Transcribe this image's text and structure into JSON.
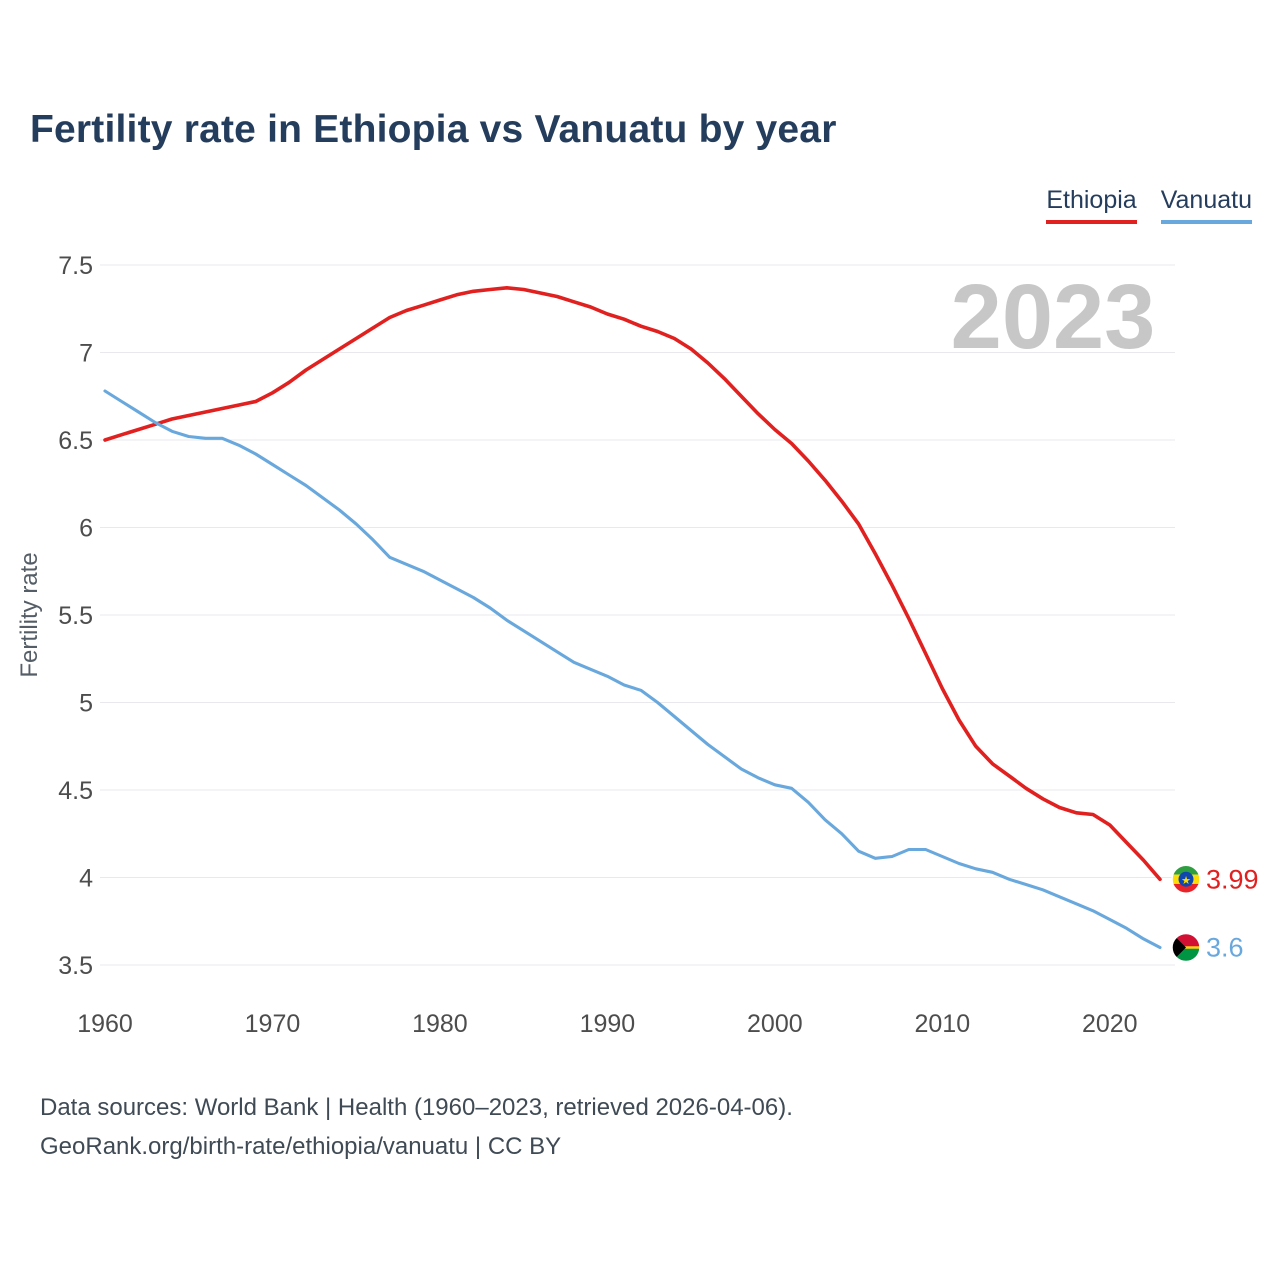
{
  "header": {
    "title": "Fertility rate in Ethiopia vs Vanuatu by year"
  },
  "legend": {
    "items": [
      {
        "label": "Ethiopia",
        "color": "#e12120"
      },
      {
        "label": "Vanuatu",
        "color": "#69a8dd"
      }
    ]
  },
  "chart_data": {
    "type": "line",
    "title": "Fertility rate in Ethiopia vs Vanuatu by year",
    "xlabel": "",
    "ylabel": "Fertility rate",
    "ylim": [
      3.5,
      7.5
    ],
    "xlim": [
      1960,
      2023
    ],
    "y_ticks": [
      3.5,
      4,
      4.5,
      5,
      5.5,
      6,
      6.5,
      7,
      7.5
    ],
    "x_ticks": [
      1960,
      1970,
      1980,
      1990,
      2000,
      2010,
      2020
    ],
    "grid": "horizontal",
    "legend_position": "top-right",
    "watermark": "2023",
    "x": [
      1960,
      1961,
      1962,
      1963,
      1964,
      1965,
      1966,
      1967,
      1968,
      1969,
      1970,
      1971,
      1972,
      1973,
      1974,
      1975,
      1976,
      1977,
      1978,
      1979,
      1980,
      1981,
      1982,
      1983,
      1984,
      1985,
      1986,
      1987,
      1988,
      1989,
      1990,
      1991,
      1992,
      1993,
      1994,
      1995,
      1996,
      1997,
      1998,
      1999,
      2000,
      2001,
      2002,
      2003,
      2004,
      2005,
      2006,
      2007,
      2008,
      2009,
      2010,
      2011,
      2012,
      2013,
      2014,
      2015,
      2016,
      2017,
      2018,
      2019,
      2020,
      2021,
      2022,
      2023
    ],
    "series": [
      {
        "name": "Ethiopia",
        "color": "#e12120",
        "flag": "ethiopia",
        "end_label": "3.99",
        "values": [
          6.5,
          6.53,
          6.56,
          6.59,
          6.62,
          6.64,
          6.66,
          6.68,
          6.7,
          6.72,
          6.77,
          6.83,
          6.9,
          6.96,
          7.02,
          7.08,
          7.14,
          7.2,
          7.24,
          7.27,
          7.3,
          7.33,
          7.35,
          7.36,
          7.37,
          7.36,
          7.34,
          7.32,
          7.29,
          7.26,
          7.22,
          7.19,
          7.15,
          7.12,
          7.08,
          7.02,
          6.94,
          6.85,
          6.75,
          6.65,
          6.56,
          6.48,
          6.38,
          6.27,
          6.15,
          6.02,
          5.85,
          5.67,
          5.48,
          5.28,
          5.08,
          4.9,
          4.75,
          4.65,
          4.58,
          4.51,
          4.45,
          4.4,
          4.37,
          4.36,
          4.3,
          4.2,
          4.1,
          3.99
        ]
      },
      {
        "name": "Vanuatu",
        "color": "#69a8dd",
        "flag": "vanuatu",
        "end_label": "3.6",
        "values": [
          6.78,
          6.72,
          6.66,
          6.6,
          6.55,
          6.52,
          6.51,
          6.51,
          6.47,
          6.42,
          6.36,
          6.3,
          6.24,
          6.17,
          6.1,
          6.02,
          5.93,
          5.83,
          5.79,
          5.75,
          5.7,
          5.65,
          5.6,
          5.54,
          5.47,
          5.41,
          5.35,
          5.29,
          5.23,
          5.19,
          5.15,
          5.1,
          5.07,
          5.0,
          4.92,
          4.84,
          4.76,
          4.69,
          4.62,
          4.57,
          4.53,
          4.51,
          4.43,
          4.33,
          4.25,
          4.15,
          4.11,
          4.12,
          4.16,
          4.16,
          4.12,
          4.08,
          4.05,
          4.03,
          3.99,
          3.96,
          3.93,
          3.89,
          3.85,
          3.81,
          3.76,
          3.71,
          3.65,
          3.6
        ]
      }
    ]
  },
  "footer": {
    "line1": "Data sources: World Bank | Health (1960–2023, retrieved 2026-04-06).",
    "line2": "GeoRank.org/birth-rate/ethiopia/vanuatu | CC BY"
  }
}
